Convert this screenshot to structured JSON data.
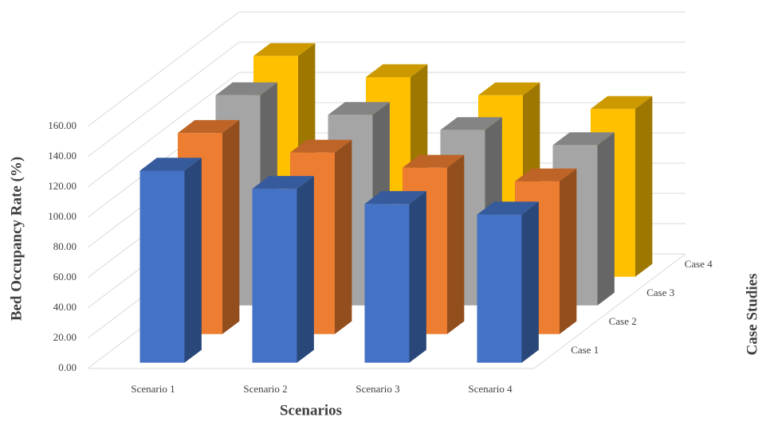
{
  "chart_data": {
    "type": "bar3d",
    "xlabel": "Scenarios",
    "ylabel": "Bed Occupancy Rate (%)",
    "zlabel": "Case Studies",
    "categories": [
      "Scenario 1",
      "Scenario 2",
      "Scenario 3",
      "Scenario 4"
    ],
    "series": [
      {
        "name": "Case 1",
        "color": "#4472c4",
        "values": [
          127,
          115,
          105,
          98
        ]
      },
      {
        "name": "Case 2",
        "color": "#ed7d31",
        "values": [
          133,
          120,
          110,
          101
        ]
      },
      {
        "name": "Case 3",
        "color": "#a5a5a5",
        "values": [
          139,
          126,
          116,
          106
        ]
      },
      {
        "name": "Case 4",
        "color": "#ffc000",
        "values": [
          146,
          132,
          120,
          111
        ]
      }
    ],
    "ylim": [
      0,
      160
    ],
    "yticks": [
      {
        "value": 0,
        "label": "0.00"
      },
      {
        "value": 20,
        "label": "20.00"
      },
      {
        "value": 40,
        "label": "40.00"
      },
      {
        "value": 60,
        "label": "60.00"
      },
      {
        "value": 80,
        "label": "80.00"
      },
      {
        "value": 100,
        "label": "100.00"
      },
      {
        "value": 120,
        "label": "120.00"
      },
      {
        "value": 140,
        "label": "140.00"
      },
      {
        "value": 160,
        "label": "160.00"
      }
    ],
    "grid": true
  }
}
